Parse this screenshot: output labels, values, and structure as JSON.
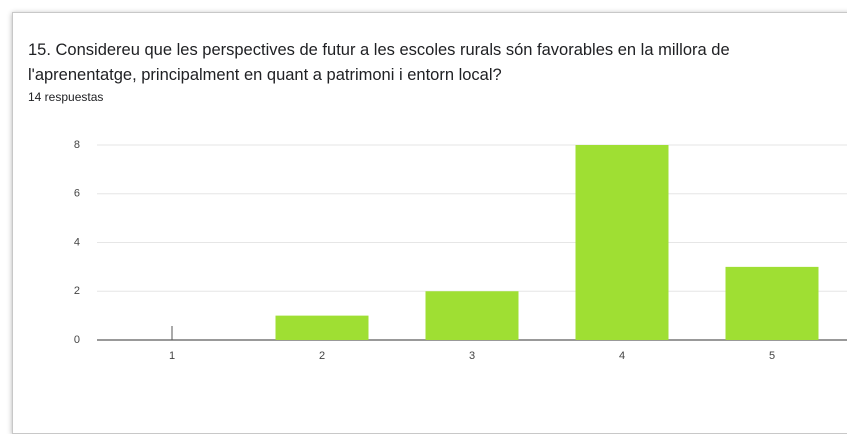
{
  "chart_data": {
    "type": "bar",
    "title": "15. Considereu que les perspectives de futur a les escoles rurals són favorables en la millora de l'aprenentatge, principalment en quant a patrimoni i entorn local?",
    "subtitle": "14 respuestas",
    "categories": [
      "1",
      "2",
      "3",
      "4",
      "5"
    ],
    "values": [
      0,
      1,
      2,
      8,
      3
    ],
    "color": "#9fdf33",
    "ylim": [
      0,
      8
    ],
    "yticks": [
      0,
      2,
      4,
      6,
      8
    ],
    "grid": true
  }
}
